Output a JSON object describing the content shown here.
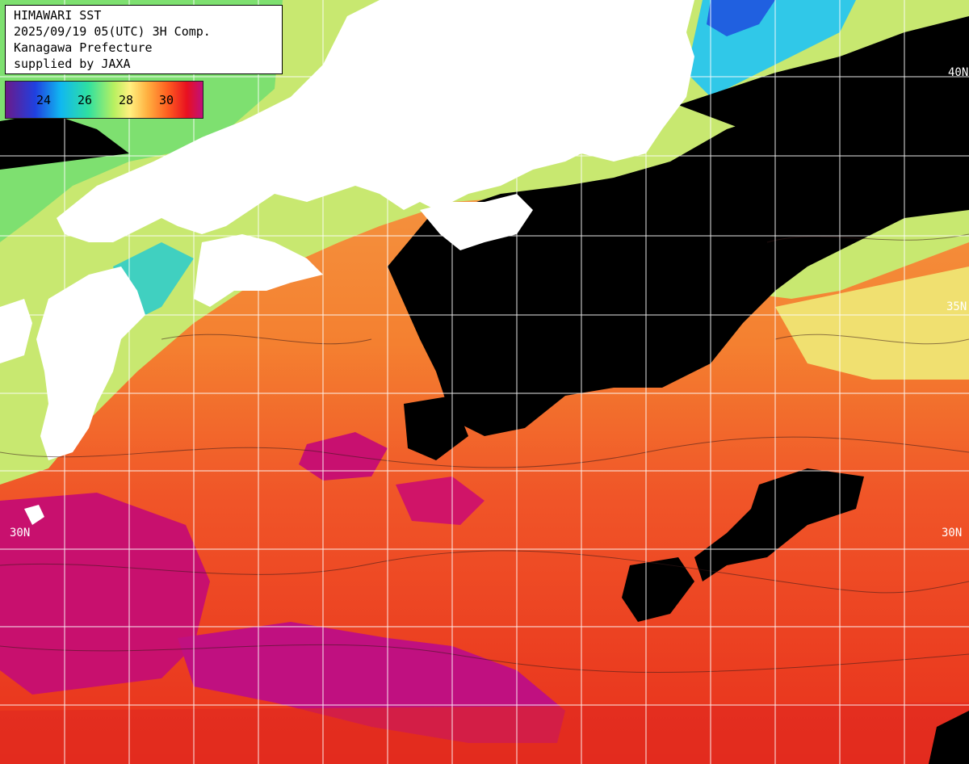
{
  "header": {
    "line1": "HIMAWARI SST",
    "line2": "2025/09/19 05(UTC) 3H Comp.",
    "line3": "Kanagawa Prefecture",
    "line4": "supplied by JAXA"
  },
  "colorbar": {
    "ticks": [
      "24",
      "26",
      "28",
      "30"
    ],
    "stops": [
      "#6a1a8a",
      "#2040e0",
      "#10b8f0",
      "#30e0a0",
      "#b8f060",
      "#fff080",
      "#ffb040",
      "#ff6020",
      "#e81020",
      "#c0107a"
    ]
  },
  "lat_labels": {
    "n30_left": "30N",
    "n30_right": "30N",
    "n35_right": "35N",
    "n40_right": "40N"
  },
  "colors": {
    "land": "#ffffff",
    "cloud": "#000000",
    "grid": "#ffffff"
  }
}
